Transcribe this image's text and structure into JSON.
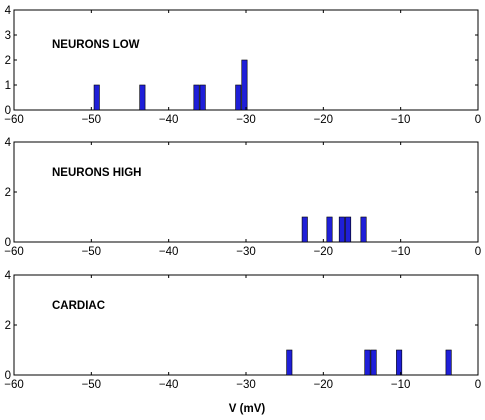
{
  "chart_data": [
    {
      "type": "bar",
      "label": "NEURONS LOW",
      "bin_width": 0.7,
      "x": [
        -49.3,
        -43.4,
        -36.4,
        -35.6,
        -31.0,
        -30.2
      ],
      "values": [
        1,
        1,
        1,
        1,
        1,
        2
      ],
      "xlim": [
        -60,
        0
      ],
      "ylim": [
        0,
        4
      ],
      "xticks": [
        "-60",
        "-50",
        "-40",
        "-30",
        "-20",
        "-10",
        "0"
      ],
      "yticks": [
        "0",
        "1",
        "2",
        "3",
        "4"
      ],
      "bar_color": "#1f1fd8"
    },
    {
      "type": "bar",
      "label": "NEURONS HIGH",
      "bin_width": 0.7,
      "x": [
        -22.4,
        -19.2,
        -17.6,
        -16.8,
        -14.8
      ],
      "values": [
        1,
        1,
        1,
        1,
        1
      ],
      "xlim": [
        -60,
        0
      ],
      "ylim": [
        0,
        4
      ],
      "xticks": [
        "-60",
        "-50",
        "-40",
        "-30",
        "-20",
        "-10",
        "0"
      ],
      "yticks": [
        "0",
        "2",
        "4"
      ],
      "bar_color": "#1f1fd8"
    },
    {
      "type": "bar",
      "label": "CARDIAC",
      "bin_width": 0.7,
      "x": [
        -24.4,
        -14.3,
        -13.5,
        -10.2,
        -3.8
      ],
      "values": [
        1,
        1,
        1,
        1,
        1
      ],
      "xlim": [
        -60,
        0
      ],
      "ylim": [
        0,
        4
      ],
      "xticks": [
        "-60",
        "-50",
        "-40",
        "-30",
        "-20",
        "-10",
        "0"
      ],
      "yticks": [
        "0",
        "2",
        "4"
      ],
      "bar_color": "#1f1fd8"
    }
  ],
  "xlabel": "V (mV)"
}
